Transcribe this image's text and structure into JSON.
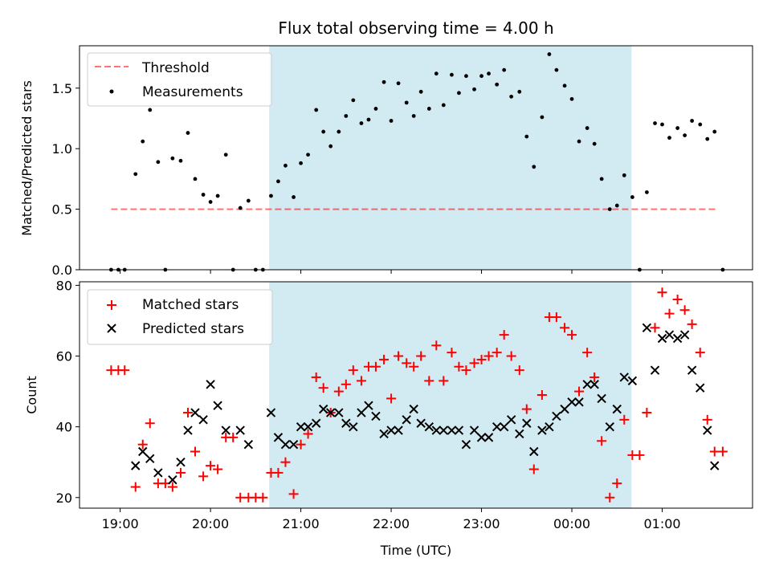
{
  "figure": {
    "title": "Flux total observing time = 4.00 h",
    "xlabel": "Time (UTC)",
    "xticks": [
      "19:00",
      "20:00",
      "21:00",
      "22:00",
      "23:00",
      "00:00",
      "01:00"
    ],
    "xlim_hours": [
      18.55,
      26.0
    ],
    "shaded_band_hours": [
      20.65,
      24.66
    ],
    "shade_color": "#add8e6"
  },
  "chart_data": [
    {
      "type": "scatter",
      "panel": "top",
      "ylabel": "Matched/Predicted stars",
      "ylim": [
        0,
        1.85
      ],
      "yticks": [
        "0.0",
        "0.5",
        "1.0",
        "1.5"
      ],
      "threshold": {
        "name": "Threshold",
        "value": 0.5,
        "x_range": [
          18.9,
          25.6
        ],
        "color": "#ff6666"
      },
      "legend_location": "upper left",
      "series": [
        {
          "name": "Measurements",
          "color": "#000000",
          "x": [
            18.9,
            18.98,
            19.05,
            19.17,
            19.25,
            19.33,
            19.42,
            19.5,
            19.58,
            19.67,
            19.75,
            19.83,
            19.92,
            20.0,
            20.08,
            20.17,
            20.25,
            20.33,
            20.42,
            20.5,
            20.58,
            20.67,
            20.75,
            20.83,
            20.92,
            21.0,
            21.08,
            21.17,
            21.25,
            21.33,
            21.42,
            21.5,
            21.58,
            21.67,
            21.75,
            21.83,
            21.92,
            22.0,
            22.08,
            22.17,
            22.25,
            22.33,
            22.42,
            22.5,
            22.58,
            22.67,
            22.75,
            22.83,
            22.92,
            23.0,
            23.08,
            23.17,
            23.25,
            23.33,
            23.42,
            23.5,
            23.58,
            23.67,
            23.75,
            23.83,
            23.92,
            24.0,
            24.08,
            24.17,
            24.25,
            24.33,
            24.42,
            24.5,
            24.58,
            24.67,
            24.75,
            24.83,
            24.92,
            25.0,
            25.08,
            25.17,
            25.25,
            25.33,
            25.42,
            25.5,
            25.58,
            25.67
          ],
          "values": [
            0.0,
            0.0,
            0.0,
            0.79,
            1.06,
            1.32,
            0.89,
            0.0,
            0.92,
            0.9,
            1.13,
            0.75,
            0.62,
            0.56,
            0.61,
            0.95,
            0.0,
            0.51,
            0.57,
            0.0,
            0.0,
            0.61,
            0.73,
            0.86,
            0.6,
            0.88,
            0.95,
            1.32,
            1.14,
            1.02,
            1.14,
            1.27,
            1.4,
            1.21,
            1.24,
            1.33,
            1.55,
            1.23,
            1.54,
            1.38,
            1.27,
            1.47,
            1.33,
            1.62,
            1.36,
            1.61,
            1.46,
            1.6,
            1.49,
            1.6,
            1.62,
            1.53,
            1.65,
            1.43,
            1.47,
            1.1,
            0.85,
            1.26,
            1.78,
            1.65,
            1.52,
            1.41,
            1.06,
            1.17,
            1.04,
            0.75,
            0.5,
            0.53,
            0.78,
            0.6,
            0.0,
            0.64,
            1.21,
            1.2,
            1.09,
            1.17,
            1.11,
            1.23,
            1.2,
            1.08,
            1.14,
            0.0
          ]
        }
      ]
    },
    {
      "type": "scatter",
      "panel": "bottom",
      "ylabel": "Count",
      "ylim": [
        17,
        81
      ],
      "yticks": [
        "20",
        "40",
        "60",
        "80"
      ],
      "legend_location": "upper left",
      "series": [
        {
          "name": "Matched stars",
          "marker": "plus",
          "color": "#ff0000",
          "x": [
            18.9,
            18.98,
            19.05,
            19.17,
            19.25,
            19.33,
            19.42,
            19.5,
            19.58,
            19.67,
            19.75,
            19.83,
            19.92,
            20.0,
            20.08,
            20.17,
            20.25,
            20.33,
            20.42,
            20.5,
            20.58,
            20.67,
            20.75,
            20.83,
            20.92,
            21.0,
            21.08,
            21.17,
            21.25,
            21.33,
            21.42,
            21.5,
            21.58,
            21.67,
            21.75,
            21.83,
            21.92,
            22.0,
            22.08,
            22.17,
            22.25,
            22.33,
            22.42,
            22.5,
            22.58,
            22.67,
            22.75,
            22.83,
            22.92,
            23.0,
            23.08,
            23.17,
            23.25,
            23.33,
            23.42,
            23.5,
            23.58,
            23.67,
            23.75,
            23.83,
            23.92,
            24.0,
            24.08,
            24.17,
            24.25,
            24.33,
            24.42,
            24.5,
            24.58,
            24.67,
            24.75,
            24.83,
            24.92,
            25.0,
            25.08,
            25.17,
            25.25,
            25.33,
            25.42,
            25.5,
            25.58,
            25.67
          ],
          "values": [
            56,
            56,
            56,
            23,
            35,
            41,
            24,
            24,
            23,
            27,
            44,
            33,
            26,
            29,
            28,
            37,
            37,
            20,
            20,
            20,
            20,
            27,
            27,
            30,
            21,
            35,
            38,
            54,
            51,
            44,
            50,
            52,
            56,
            53,
            57,
            57,
            59,
            48,
            60,
            58,
            57,
            60,
            53,
            63,
            53,
            61,
            57,
            56,
            58,
            59,
            60,
            61,
            66,
            60,
            56,
            45,
            28,
            49,
            71,
            71,
            68,
            66,
            50,
            61,
            54,
            36,
            20,
            24,
            42,
            32,
            32,
            44,
            68,
            78,
            72,
            76,
            73,
            69,
            61,
            42,
            33,
            33
          ]
        },
        {
          "name": "Predicted stars",
          "marker": "x",
          "color": "#000000",
          "x": [
            19.17,
            19.25,
            19.33,
            19.42,
            19.58,
            19.67,
            19.75,
            19.83,
            19.92,
            20.0,
            20.08,
            20.17,
            20.33,
            20.42,
            20.67,
            20.75,
            20.83,
            20.92,
            21.0,
            21.08,
            21.17,
            21.25,
            21.33,
            21.42,
            21.5,
            21.58,
            21.67,
            21.75,
            21.83,
            21.92,
            22.0,
            22.08,
            22.17,
            22.25,
            22.33,
            22.42,
            22.5,
            22.58,
            22.67,
            22.75,
            22.83,
            22.92,
            23.0,
            23.08,
            23.17,
            23.25,
            23.33,
            23.42,
            23.5,
            23.58,
            23.67,
            23.75,
            23.83,
            23.92,
            24.0,
            24.08,
            24.17,
            24.25,
            24.33,
            24.42,
            24.5,
            24.58,
            24.67,
            24.83,
            24.92,
            25.0,
            25.08,
            25.17,
            25.25,
            25.33,
            25.42,
            25.5,
            25.58
          ],
          "values": [
            29,
            33,
            31,
            27,
            25,
            30,
            39,
            44,
            42,
            52,
            46,
            39,
            39,
            35,
            44,
            37,
            35,
            35,
            40,
            40,
            41,
            45,
            44,
            44,
            41,
            40,
            44,
            46,
            43,
            38,
            39,
            39,
            42,
            45,
            41,
            40,
            39,
            39,
            39,
            39,
            35,
            39,
            37,
            37,
            40,
            40,
            42,
            38,
            41,
            33,
            39,
            40,
            43,
            45,
            47,
            47,
            52,
            52,
            48,
            40,
            45,
            54,
            53,
            68,
            56,
            65,
            66,
            65,
            66,
            56,
            51,
            39,
            29
          ]
        }
      ]
    }
  ]
}
